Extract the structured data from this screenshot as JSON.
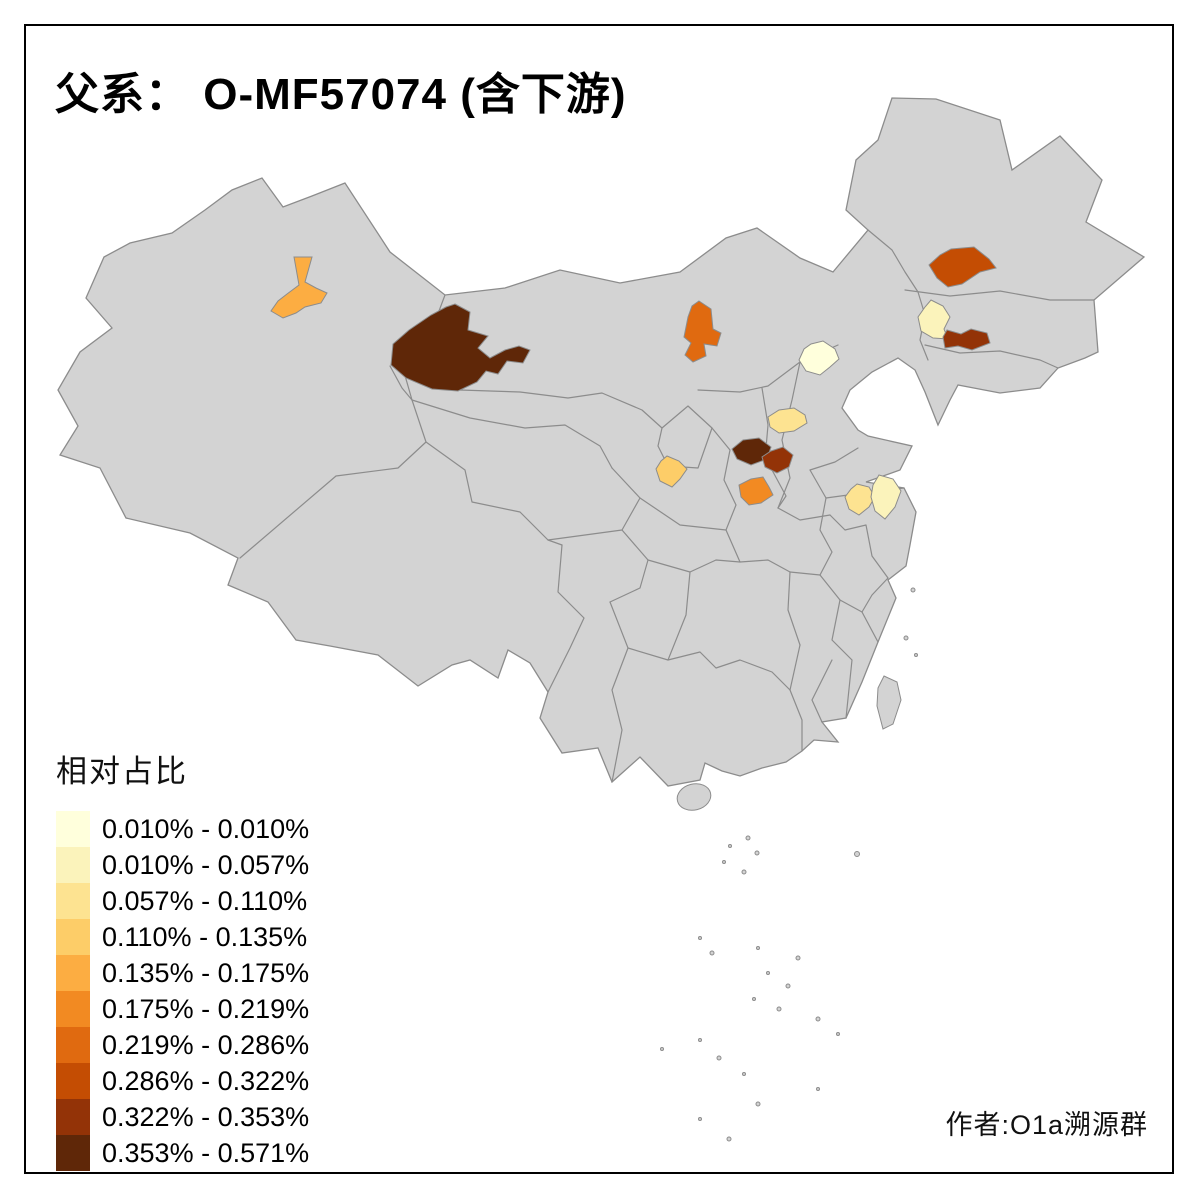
{
  "title": "父系： O-MF57074 (含下游)",
  "attribution": "作者:O1a溯源群",
  "legend": {
    "title": "相对占比",
    "classes": [
      {
        "label": "0.010% - 0.010%",
        "color": "#FFFFDC"
      },
      {
        "label": "0.010% - 0.057%",
        "color": "#FBF3BB"
      },
      {
        "label": "0.057% - 0.110%",
        "color": "#FDE391"
      },
      {
        "label": "0.110% - 0.135%",
        "color": "#FDCD68"
      },
      {
        "label": "0.135% - 0.175%",
        "color": "#FCAD42"
      },
      {
        "label": "0.175% - 0.219%",
        "color": "#F28A22"
      },
      {
        "label": "0.219% - 0.286%",
        "color": "#E06A10"
      },
      {
        "label": "0.286% - 0.322%",
        "color": "#C44D03"
      },
      {
        "label": "0.322% - 0.353%",
        "color": "#933307"
      },
      {
        "label": "0.353% - 0.571%",
        "color": "#5F2708"
      }
    ]
  },
  "map": {
    "base_fill": "#D3D3D3",
    "border_color": "#8C8C8C",
    "sea_color": "#FFFFFF",
    "regions": [
      {
        "id": "xinjiang-central",
        "class_index": 4
      },
      {
        "id": "inner-mongolia-west",
        "class_index": 9
      },
      {
        "id": "inner-mongolia-central",
        "class_index": 6
      },
      {
        "id": "heilongjiang-harbin-area",
        "class_index": 7
      },
      {
        "id": "jilin-changchun-area",
        "class_index": 1
      },
      {
        "id": "liaoning-north",
        "class_index": 8
      },
      {
        "id": "beijing",
        "class_index": 0
      },
      {
        "id": "hebei-southwest",
        "class_index": 2
      },
      {
        "id": "gansu-lanzhou-area",
        "class_index": 3
      },
      {
        "id": "shaanxi-north",
        "class_index": 9
      },
      {
        "id": "shanxi-west",
        "class_index": 8
      },
      {
        "id": "shaanxi-central",
        "class_index": 5
      },
      {
        "id": "jiangsu-northwest",
        "class_index": 2
      },
      {
        "id": "jiangsu-northeast",
        "class_index": 1
      }
    ]
  },
  "chart_data": {
    "type": "choropleth",
    "title": "父系： O-MF57074 (含下游)",
    "legend_title": "相对占比",
    "unit": "%",
    "classes": [
      "0.010% - 0.010%",
      "0.010% - 0.057%",
      "0.057% - 0.110%",
      "0.110% - 0.135%",
      "0.135% - 0.175%",
      "0.175% - 0.219%",
      "0.219% - 0.286%",
      "0.286% - 0.322%",
      "0.322% - 0.353%",
      "0.353% - 0.571%"
    ],
    "regions": [
      {
        "id": "xinjiang-central",
        "range": "0.135% - 0.175%"
      },
      {
        "id": "inner-mongolia-west",
        "range": "0.353% - 0.571%"
      },
      {
        "id": "inner-mongolia-central",
        "range": "0.219% - 0.286%"
      },
      {
        "id": "heilongjiang-harbin-area",
        "range": "0.286% - 0.322%"
      },
      {
        "id": "jilin-changchun-area",
        "range": "0.010% - 0.057%"
      },
      {
        "id": "liaoning-north",
        "range": "0.322% - 0.353%"
      },
      {
        "id": "beijing",
        "range": "0.010% - 0.010%"
      },
      {
        "id": "hebei-southwest",
        "range": "0.057% - 0.110%"
      },
      {
        "id": "gansu-lanzhou-area",
        "range": "0.110% - 0.135%"
      },
      {
        "id": "shaanxi-north",
        "range": "0.353% - 0.571%"
      },
      {
        "id": "shanxi-west",
        "range": "0.322% - 0.353%"
      },
      {
        "id": "shaanxi-central",
        "range": "0.175% - 0.219%"
      },
      {
        "id": "jiangsu-northwest",
        "range": "0.057% - 0.110%"
      },
      {
        "id": "jiangsu-northeast",
        "range": "0.010% - 0.057%"
      }
    ]
  }
}
